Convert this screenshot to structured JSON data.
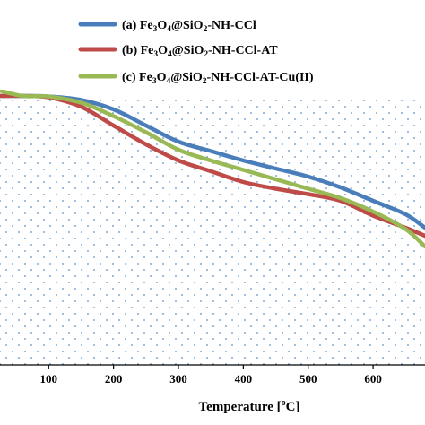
{
  "chart_data": {
    "type": "line",
    "xlabel": "Temperature [°C]",
    "xlabel_parts": [
      "Temperature [",
      "o",
      "C]"
    ],
    "ylabel": "",
    "xlim": [
      25,
      680
    ],
    "ylim": [
      0,
      100
    ],
    "x_ticks": [
      100,
      200,
      300,
      400,
      500,
      600
    ],
    "grid": "dotted background",
    "legend_position": "top-center",
    "series": [
      {
        "name": "(a) Fe3O4@SiO2-NH-CCl",
        "legend_parts": [
          [
            "(a) Fe",
            "n"
          ],
          [
            "3",
            "sub"
          ],
          [
            "O",
            "n"
          ],
          [
            "4",
            "sub"
          ],
          [
            "@SiO",
            "n"
          ],
          [
            "2",
            "sub"
          ],
          [
            "-NH-CCl",
            "n"
          ]
        ],
        "color": "#4a7ebb",
        "x": [
          25,
          60,
          100,
          150,
          200,
          250,
          300,
          350,
          400,
          450,
          500,
          550,
          600,
          650,
          680
        ],
        "y": [
          100,
          100,
          99.8,
          98.5,
          95,
          89,
          83,
          79.5,
          76,
          73,
          70,
          66,
          61,
          56,
          51
        ]
      },
      {
        "name": "(b) Fe3O4@SiO2-NH-CCl-AT",
        "legend_parts": [
          [
            "(b) Fe",
            "n"
          ],
          [
            "3",
            "sub"
          ],
          [
            "O",
            "n"
          ],
          [
            "4",
            "sub"
          ],
          [
            "@SiO",
            "n"
          ],
          [
            "2",
            "sub"
          ],
          [
            "-NH-CCl-AT",
            "n"
          ]
        ],
        "color": "#be4b48",
        "x": [
          25,
          60,
          100,
          150,
          200,
          250,
          300,
          350,
          400,
          450,
          500,
          550,
          600,
          650,
          680
        ],
        "y": [
          100,
          100,
          99.5,
          96,
          89,
          82,
          76,
          72,
          68,
          65.5,
          63.5,
          61,
          55.5,
          51,
          48
        ]
      },
      {
        "name": "(c) Fe3O4@SiO2-NH-CCl-AT-Cu(II)",
        "legend_parts": [
          [
            "(c) Fe",
            "n"
          ],
          [
            "3",
            "sub"
          ],
          [
            "O",
            "n"
          ],
          [
            "4",
            "sub"
          ],
          [
            "@SiO",
            "n"
          ],
          [
            "2",
            "sub"
          ],
          [
            "-NH-CCl-AT-Cu(II)",
            "n"
          ]
        ],
        "color": "#98b954",
        "x": [
          25,
          60,
          100,
          150,
          200,
          250,
          300,
          350,
          400,
          450,
          500,
          550,
          600,
          650,
          680
        ],
        "y": [
          102,
          100,
          99.8,
          97.5,
          92.5,
          86.5,
          80,
          76,
          72.5,
          69,
          65.5,
          62,
          57,
          50.5,
          44
        ]
      }
    ]
  }
}
